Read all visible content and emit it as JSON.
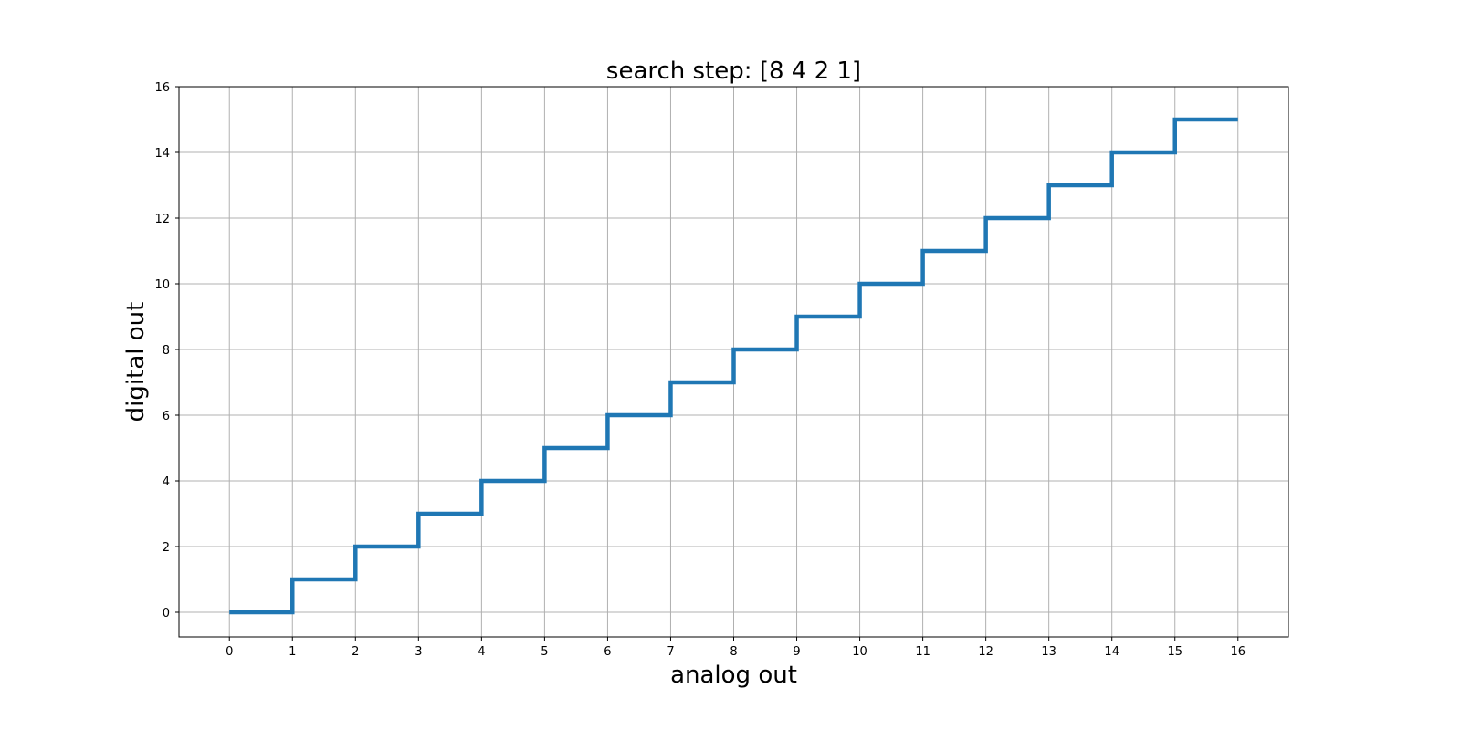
{
  "chart_data": {
    "type": "line",
    "title": "search step: [8 4 2 1]",
    "xlabel": "analog out",
    "ylabel": "digital out",
    "xlim": [
      -0.8,
      16.8
    ],
    "ylim": [
      -0.75,
      16
    ],
    "xticks": [
      0,
      1,
      2,
      3,
      4,
      5,
      6,
      7,
      8,
      9,
      10,
      11,
      12,
      13,
      14,
      15,
      16
    ],
    "yticks": [
      0,
      2,
      4,
      6,
      8,
      10,
      12,
      14,
      16
    ],
    "grid": true,
    "line_style": "steps-post",
    "series": [
      {
        "color": "#1f77b4",
        "x": [
          0,
          1,
          2,
          3,
          4,
          5,
          6,
          7,
          8,
          9,
          10,
          11,
          12,
          13,
          14,
          15,
          16
        ],
        "y": [
          0,
          1,
          2,
          3,
          4,
          5,
          6,
          7,
          8,
          9,
          10,
          11,
          12,
          13,
          14,
          15,
          15
        ]
      }
    ]
  }
}
